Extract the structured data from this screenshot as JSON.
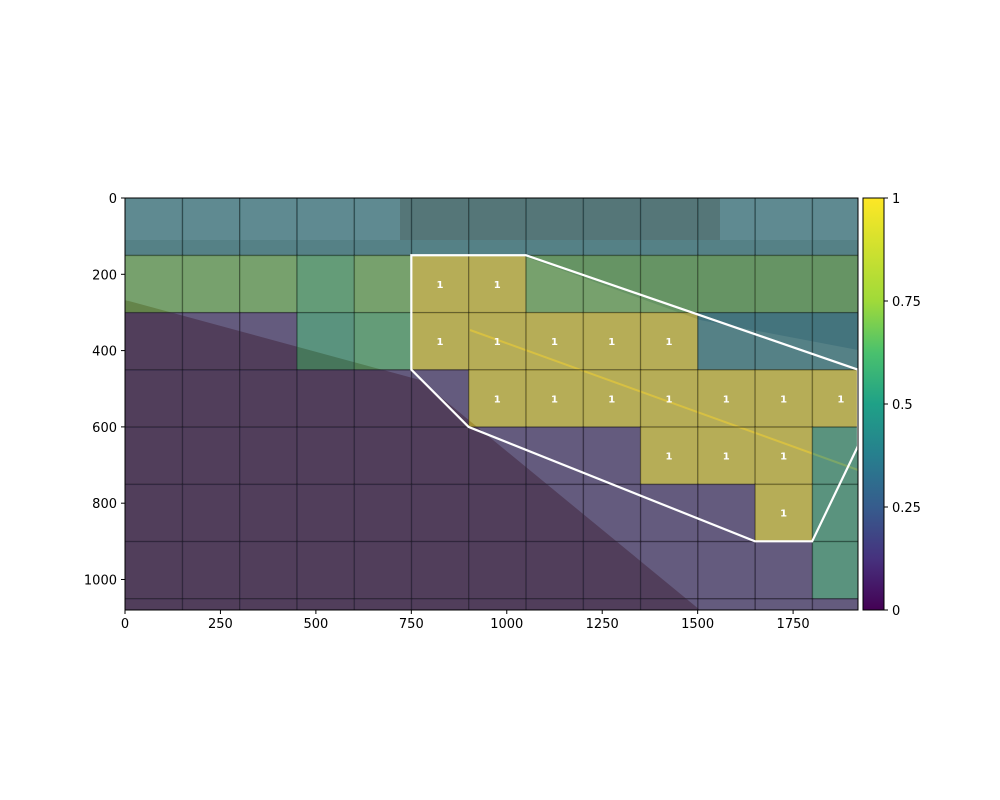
{
  "chart_data": {
    "type": "heatmap",
    "title": "",
    "xlabel": "",
    "ylabel": "",
    "image_size": [
      1920,
      1080
    ],
    "xlim": [
      0,
      1920
    ],
    "ylim": [
      1080,
      0
    ],
    "x_ticks": [
      0,
      250,
      500,
      750,
      1000,
      1250,
      1500,
      1750
    ],
    "y_ticks": [
      0,
      200,
      400,
      600,
      800,
      1000
    ],
    "grid_cell": 150,
    "colorbar": {
      "colormap": "viridis",
      "min": 0,
      "max": 1,
      "ticks": [
        0,
        0.25,
        0.5,
        0.75,
        1
      ],
      "tick_labels": [
        "0",
        "0.25",
        "0.5",
        "0.75",
        "1"
      ]
    },
    "background": "traffic camera photo of a road, parking lot and concrete barriers",
    "cell_values": [
      [
        0.4,
        0.4,
        0.4,
        0.4,
        0.4,
        0.4,
        0.4,
        0.4,
        0.4,
        0.4,
        0.4,
        0.4,
        0.4
      ],
      [
        0.68,
        0.68,
        0.68,
        0.62,
        0.68,
        1,
        1,
        0.68,
        0.68,
        0.68,
        0.68,
        0.68,
        0.68
      ],
      [
        0.12,
        0.12,
        0.12,
        0.55,
        0.62,
        1,
        1,
        1,
        1,
        1,
        0.4,
        0.4,
        0.4
      ],
      [
        0.12,
        0.12,
        0.12,
        0.12,
        0.12,
        0.12,
        1,
        1,
        1,
        1,
        1,
        1,
        1
      ],
      [
        0.12,
        0.12,
        0.12,
        0.12,
        0.12,
        0.12,
        0.12,
        0.12,
        0.12,
        1,
        1,
        1,
        0.55
      ],
      [
        0.12,
        0.12,
        0.12,
        0.12,
        0.12,
        0.12,
        0.12,
        0.12,
        0.12,
        0.12,
        0.12,
        1,
        0.55
      ],
      [
        0.12,
        0.12,
        0.12,
        0.12,
        0.12,
        0.12,
        0.12,
        0.12,
        0.12,
        0.12,
        0.12,
        0.12,
        0.55
      ],
      [
        0.12,
        0.12,
        0.12,
        0.12,
        0.12,
        0.12,
        0.12,
        0.12,
        0.12,
        0.12,
        0.12,
        0.12,
        0.12
      ]
    ],
    "cell_labels": [
      {
        "row": 1,
        "col": 5,
        "text": "1"
      },
      {
        "row": 1,
        "col": 6,
        "text": "1"
      },
      {
        "row": 2,
        "col": 5,
        "text": "1"
      },
      {
        "row": 2,
        "col": 6,
        "text": "1"
      },
      {
        "row": 2,
        "col": 7,
        "text": "1"
      },
      {
        "row": 2,
        "col": 8,
        "text": "1"
      },
      {
        "row": 2,
        "col": 9,
        "text": "1"
      },
      {
        "row": 3,
        "col": 6,
        "text": "1"
      },
      {
        "row": 3,
        "col": 7,
        "text": "1"
      },
      {
        "row": 3,
        "col": 8,
        "text": "1"
      },
      {
        "row": 3,
        "col": 9,
        "text": "1"
      },
      {
        "row": 3,
        "col": 10,
        "text": "1"
      },
      {
        "row": 3,
        "col": 11,
        "text": "1"
      },
      {
        "row": 3,
        "col": 12,
        "text": "1"
      },
      {
        "row": 4,
        "col": 9,
        "text": "1"
      },
      {
        "row": 4,
        "col": 10,
        "text": "1"
      },
      {
        "row": 4,
        "col": 11,
        "text": "1"
      },
      {
        "row": 5,
        "col": 11,
        "text": "1"
      }
    ],
    "region_polygon": [
      [
        750,
        150
      ],
      [
        1050,
        150
      ],
      [
        1920,
        450
      ],
      [
        1920,
        650
      ],
      [
        1800,
        900
      ],
      [
        1650,
        900
      ],
      [
        900,
        600
      ],
      [
        750,
        450
      ]
    ]
  }
}
